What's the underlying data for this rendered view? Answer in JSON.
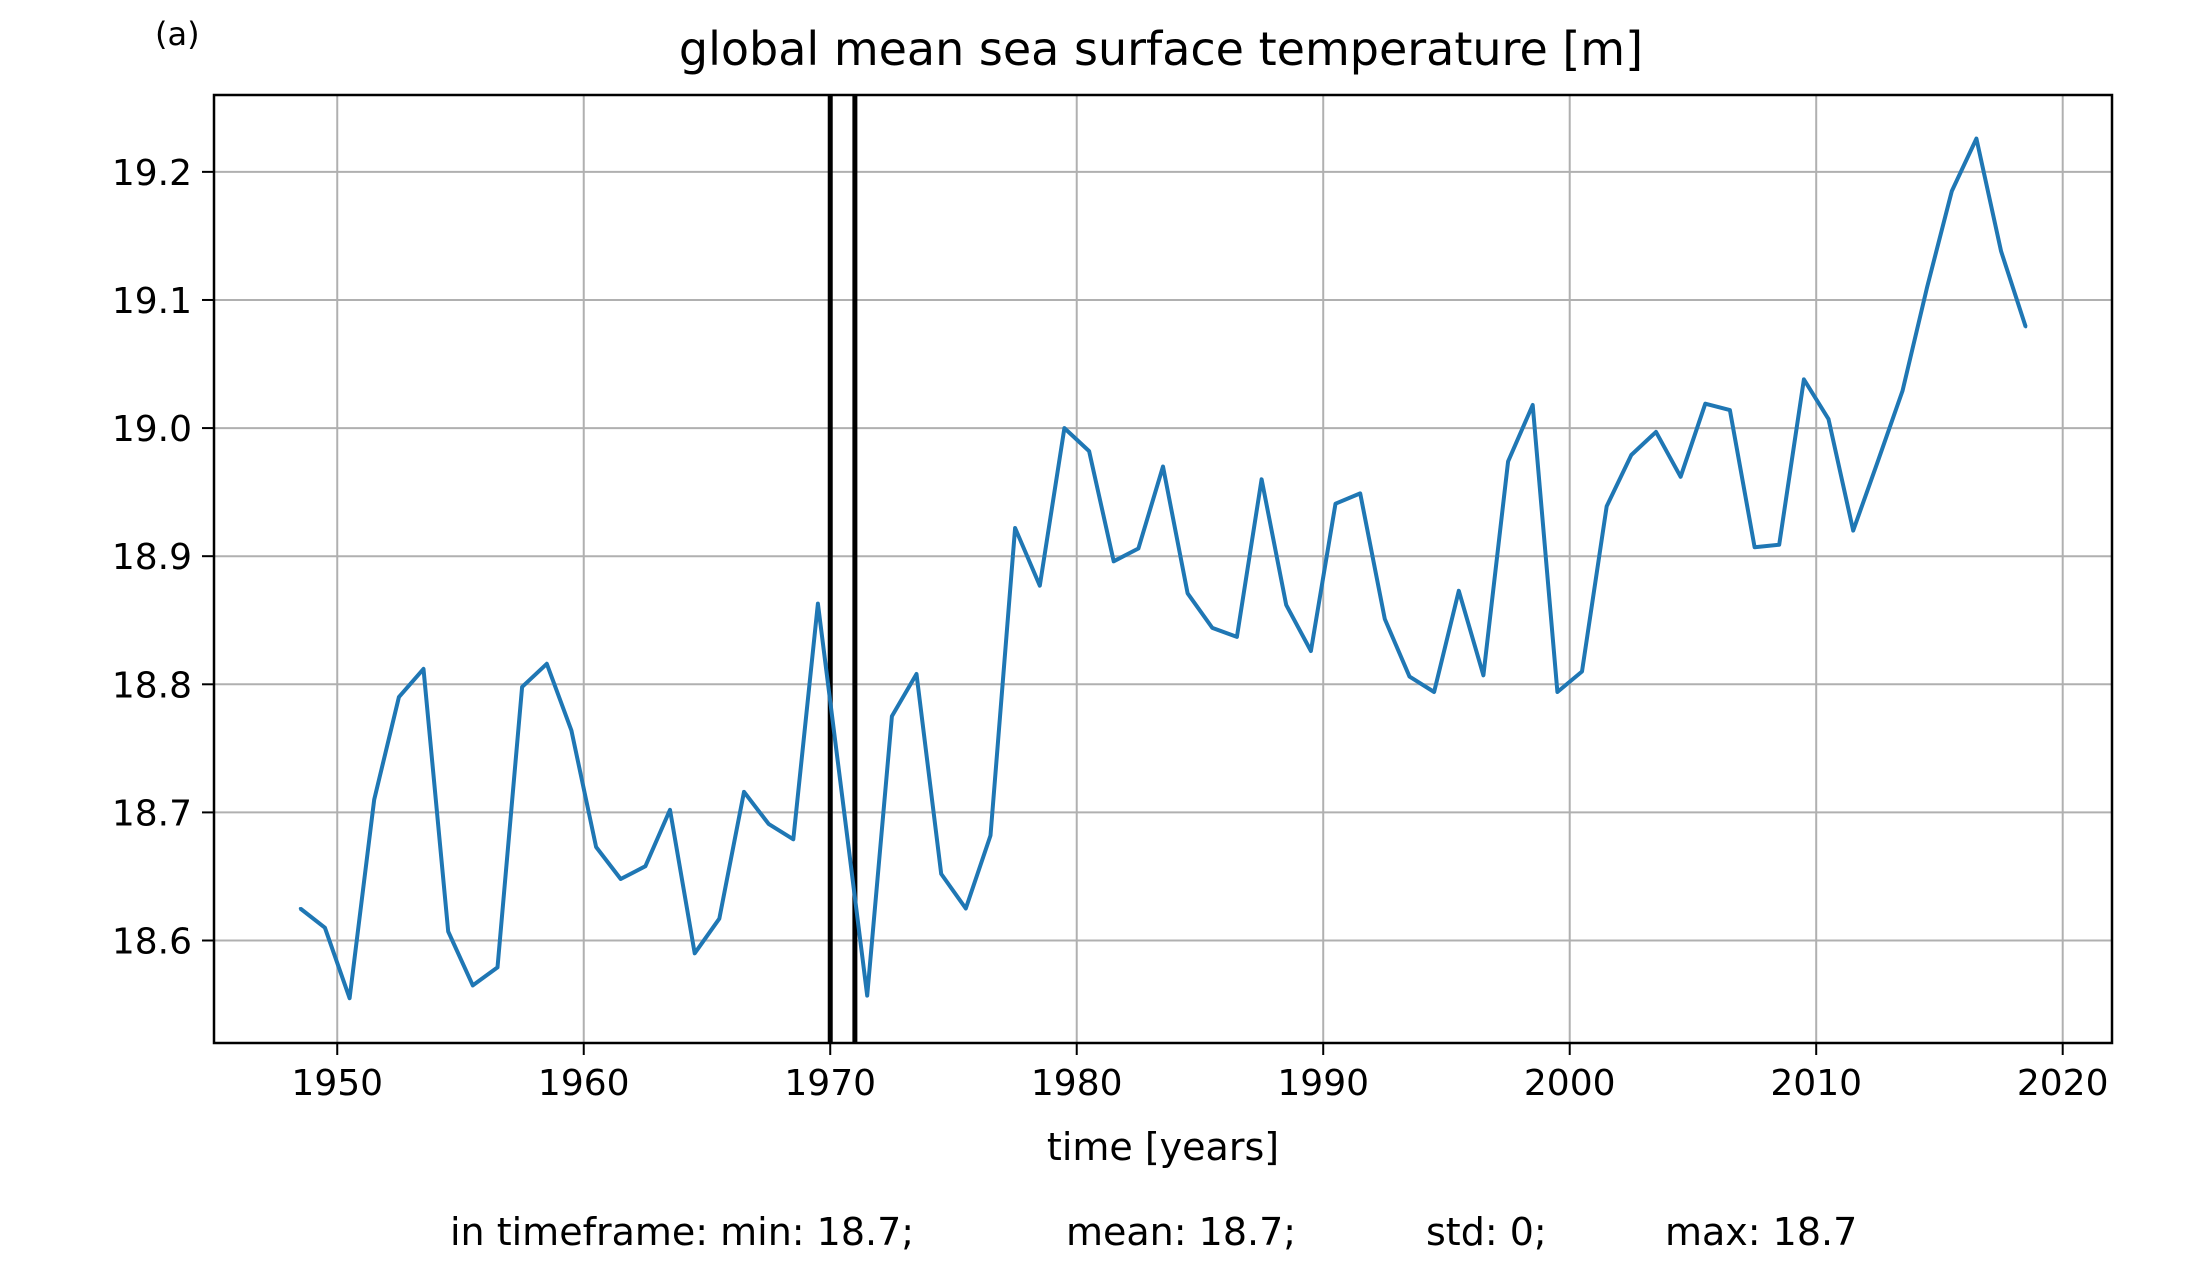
{
  "panel_label": "(a)",
  "chart_data": {
    "type": "line",
    "title": "global mean sea surface temperature [m]",
    "xlabel": "time [years]",
    "ylabel": "",
    "xlim": [
      1945,
      2022
    ],
    "ylim": [
      18.52,
      19.26
    ],
    "xticks": [
      1950,
      1960,
      1970,
      1980,
      1990,
      2000,
      2010,
      2020
    ],
    "yticks": [
      18.6,
      18.7,
      18.8,
      18.9,
      19.0,
      19.1,
      19.2
    ],
    "grid": true,
    "line_color": "#1f77b4",
    "marker_lines": [
      1970.0,
      1971.0
    ],
    "series": [
      {
        "name": "",
        "x": [
          1948.5,
          1949.5,
          1950.5,
          1951.5,
          1952.5,
          1953.5,
          1954.5,
          1955.5,
          1956.5,
          1957.5,
          1958.5,
          1959.5,
          1960.5,
          1961.5,
          1962.5,
          1963.5,
          1964.5,
          1965.5,
          1966.5,
          1967.5,
          1968.5,
          1969.5,
          1970.5,
          1971.5,
          1972.5,
          1973.5,
          1974.5,
          1975.5,
          1976.5,
          1977.5,
          1978.5,
          1979.5,
          1980.5,
          1981.5,
          1982.5,
          1983.5,
          1984.5,
          1985.5,
          1986.5,
          1987.5,
          1988.5,
          1989.5,
          1990.5,
          1991.5,
          1992.5,
          1993.5,
          1994.5,
          1995.5,
          1996.5,
          1997.5,
          1998.5,
          1999.5,
          2000.5,
          2001.5,
          2002.5,
          2003.5,
          2004.5,
          2005.5,
          2006.5,
          2007.5,
          2008.5,
          2009.5,
          2010.5,
          2011.5,
          2012.5,
          2013.5,
          2014.5,
          2015.5,
          2016.5,
          2017.5,
          2018.5
        ],
        "values": [
          18.625,
          18.61,
          18.555,
          18.71,
          18.79,
          18.812,
          18.607,
          18.565,
          18.579,
          18.798,
          18.816,
          18.764,
          18.673,
          18.648,
          18.658,
          18.702,
          18.59,
          18.617,
          18.716,
          18.691,
          18.679,
          18.863,
          18.71,
          18.557,
          18.775,
          18.808,
          18.652,
          18.625,
          18.682,
          18.922,
          18.877,
          19.0,
          18.982,
          18.896,
          18.906,
          18.97,
          18.871,
          18.844,
          18.837,
          18.96,
          18.862,
          18.826,
          18.941,
          18.949,
          18.851,
          18.806,
          18.794,
          18.873,
          18.807,
          18.974,
          19.018,
          18.794,
          18.81,
          18.939,
          18.979,
          18.997,
          18.962,
          19.019,
          19.014,
          18.907,
          18.909,
          19.038,
          19.007,
          18.92,
          18.974,
          19.029,
          19.11,
          19.185,
          19.226,
          19.138,
          19.079
        ]
      }
    ]
  },
  "stats": {
    "min": "in timeframe: min: 18.7;",
    "mean": "mean: 18.7;",
    "std": "std: 0;",
    "max": "max: 18.7"
  }
}
